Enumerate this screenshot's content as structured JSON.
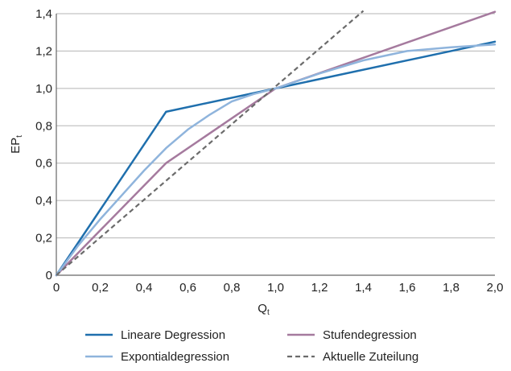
{
  "chart_data": {
    "type": "line",
    "xlabel": {
      "main": "Q",
      "sub": "t"
    },
    "ylabel": {
      "main": "EP",
      "sub": "t"
    },
    "xlim": [
      0,
      2.0
    ],
    "ylim": [
      0,
      1.4
    ],
    "x_ticks": [
      {
        "value": 0,
        "label": "0"
      },
      {
        "value": 0.2,
        "label": "0,2"
      },
      {
        "value": 0.4,
        "label": "0,4"
      },
      {
        "value": 0.6,
        "label": "0,6"
      },
      {
        "value": 0.8,
        "label": "0,8"
      },
      {
        "value": 1.0,
        "label": "1,0"
      },
      {
        "value": 1.2,
        "label": "1,2"
      },
      {
        "value": 1.4,
        "label": "1,4"
      },
      {
        "value": 1.6,
        "label": "1,6"
      },
      {
        "value": 1.8,
        "label": "1,8"
      },
      {
        "value": 2.0,
        "label": "2,0"
      }
    ],
    "y_ticks": [
      {
        "value": 0,
        "label": "0"
      },
      {
        "value": 0.2,
        "label": "0,2"
      },
      {
        "value": 0.4,
        "label": "0,4"
      },
      {
        "value": 0.6,
        "label": "0,6"
      },
      {
        "value": 0.8,
        "label": "0,8"
      },
      {
        "value": 1.0,
        "label": "1,0"
      },
      {
        "value": 1.2,
        "label": "1,2"
      },
      {
        "value": 1.4,
        "label": "1,4"
      }
    ],
    "grid": {
      "horizontal": true,
      "vertical": false
    },
    "legend_position": "bottom",
    "series": [
      {
        "name": "Lineare Degression",
        "color": "#1f6fad",
        "dash": "solid",
        "x": [
          0,
          0.5,
          1.0,
          2.0
        ],
        "y": [
          0,
          0.875,
          1.0,
          1.25
        ]
      },
      {
        "name": "Stufendegression",
        "color": "#a57a9e",
        "dash": "solid",
        "x": [
          0,
          0.5,
          1.0,
          2.0
        ],
        "y": [
          0,
          0.6,
          1.0,
          1.41
        ]
      },
      {
        "name": "Expontialdegression",
        "color": "#8fb4dc",
        "dash": "solid",
        "x": [
          0,
          0.1,
          0.2,
          0.3,
          0.4,
          0.5,
          0.6,
          0.7,
          0.8,
          0.9,
          1.0,
          1.2,
          1.4,
          1.6,
          1.8,
          2.0
        ],
        "y": [
          0,
          0.16,
          0.3,
          0.43,
          0.56,
          0.68,
          0.78,
          0.86,
          0.93,
          0.97,
          1.0,
          1.08,
          1.15,
          1.2,
          1.22,
          1.235
        ]
      },
      {
        "name": "Aktuelle Zuteilung",
        "color": "#6b6b6b",
        "dash": "dashed",
        "x": [
          0,
          1.4
        ],
        "y": [
          0,
          1.415
        ]
      }
    ]
  }
}
